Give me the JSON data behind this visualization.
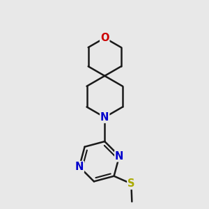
{
  "bg": "#e8e8e8",
  "bc": "#1a1a1a",
  "Nc": "#0000cc",
  "Oc": "#cc0000",
  "Sc": "#aaaa00",
  "lw": 1.8,
  "fs": 10.5,
  "xlim": [
    -1.8,
    2.2
  ],
  "ylim": [
    -3.2,
    2.8
  ]
}
